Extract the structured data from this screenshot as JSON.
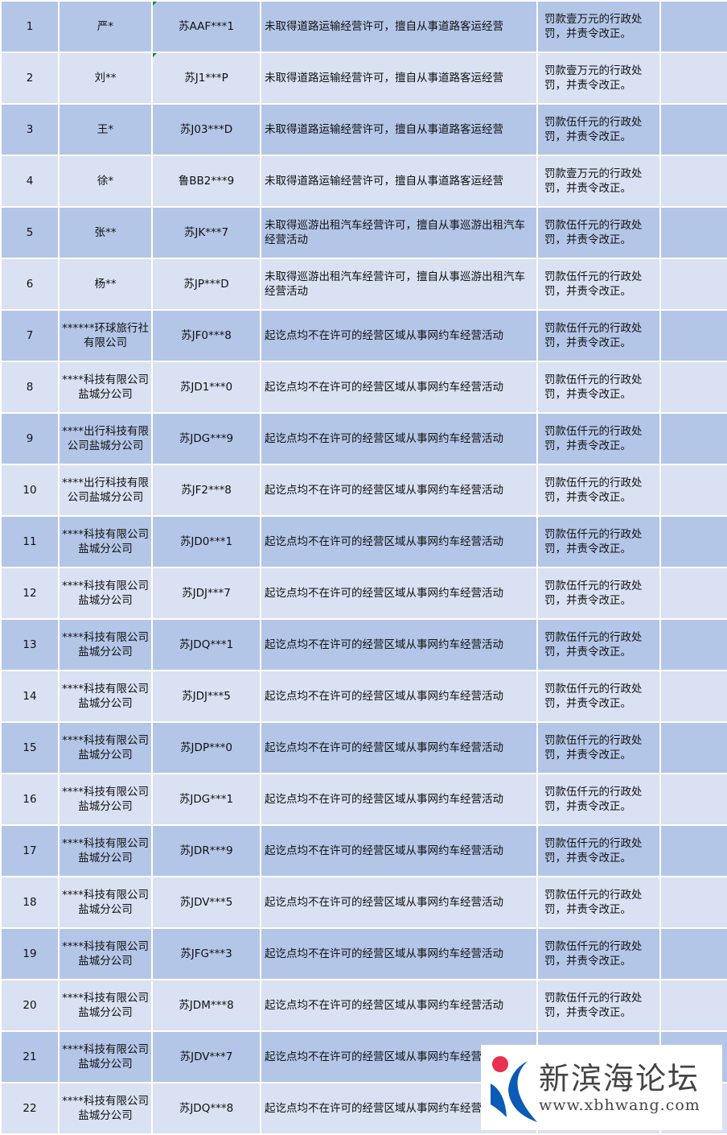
{
  "colors": {
    "row_odd": "#b4c6e7",
    "row_even": "#d9e1f2",
    "watermark_dot": "#e8304f",
    "watermark_arc": "#0a5bb5"
  },
  "rows": [
    {
      "no": "1",
      "name": "严*",
      "plate": "苏AAF***1",
      "violation": "未取得道路运输经营许可，擅自从事道路客运经营",
      "penalty": "罚款壹万元的行政处罚，并责令改正。"
    },
    {
      "no": "2",
      "name": "刘**",
      "plate": "苏J1***P",
      "violation": "未取得道路运输经营许可，擅自从事道路客运经营",
      "penalty": "罚款壹万元的行政处罚，并责令改正。"
    },
    {
      "no": "3",
      "name": "王*",
      "plate": "苏J03***D",
      "violation": "未取得道路运输经营许可，擅自从事道路客运经营",
      "penalty": "罚款伍仟元的行政处罚，并责令改正。"
    },
    {
      "no": "4",
      "name": "徐*",
      "plate": "鲁BB2***9",
      "violation": "未取得道路运输经营许可，擅自从事道路客运经营",
      "penalty": "罚款壹万元的行政处罚，并责令改正。"
    },
    {
      "no": "5",
      "name": "张**",
      "plate": "苏JK***7",
      "violation": "未取得巡游出租汽车经营许可，擅自从事巡游出租汽车经营活动",
      "penalty": "罚款伍仟元的行政处罚，并责令改正。"
    },
    {
      "no": "6",
      "name": "杨**",
      "plate": "苏JP***D",
      "violation": "未取得巡游出租汽车经营许可，擅自从事巡游出租汽车经营活动",
      "penalty": "罚款伍仟元的行政处罚，并责令改正。"
    },
    {
      "no": "7",
      "name": "******环球旅行社有限公司",
      "plate": "苏JF0***8",
      "violation": "起讫点均不在许可的经营区域从事网约车经营活动",
      "penalty": "罚款伍仟元的行政处罚，并责令改正。"
    },
    {
      "no": "8",
      "name": "****科技有限公司盐城分公司",
      "plate": "苏JD1***0",
      "violation": "起讫点均不在许可的经营区域从事网约车经营活动",
      "penalty": "罚款伍仟元的行政处罚，并责令改正。"
    },
    {
      "no": "9",
      "name": "****出行科技有限公司盐城分公司",
      "plate": "苏JDG***9",
      "violation": "起讫点均不在许可的经营区域从事网约车经营活动",
      "penalty": "罚款伍仟元的行政处罚，并责令改正。"
    },
    {
      "no": "10",
      "name": "****出行科技有限公司盐城分公司",
      "plate": "苏JF2***8",
      "violation": "起讫点均不在许可的经营区域从事网约车经营活动",
      "penalty": "罚款伍仟元的行政处罚，并责令改正。"
    },
    {
      "no": "11",
      "name": "****科技有限公司盐城分公司",
      "plate": "苏JD0***1",
      "violation": "起讫点均不在许可的经营区域从事网约车经营活动",
      "penalty": "罚款伍仟元的行政处罚，并责令改正。"
    },
    {
      "no": "12",
      "name": "****科技有限公司盐城分公司",
      "plate": "苏JDJ***7",
      "violation": "起讫点均不在许可的经营区域从事网约车经营活动",
      "penalty": "罚款伍仟元的行政处罚，并责令改正。"
    },
    {
      "no": "13",
      "name": "****科技有限公司盐城分公司",
      "plate": "苏JDQ***1",
      "violation": "起讫点均不在许可的经营区域从事网约车经营活动",
      "penalty": "罚款伍仟元的行政处罚，并责令改正。"
    },
    {
      "no": "14",
      "name": "****科技有限公司盐城分公司",
      "plate": "苏JDJ***5",
      "violation": "起讫点均不在许可的经营区域从事网约车经营活动",
      "penalty": "罚款伍仟元的行政处罚，并责令改正。"
    },
    {
      "no": "15",
      "name": "****科技有限公司盐城分公司",
      "plate": "苏JDP***0",
      "violation": "起讫点均不在许可的经营区域从事网约车经营活动",
      "penalty": "罚款伍仟元的行政处罚，并责令改正。"
    },
    {
      "no": "16",
      "name": "****科技有限公司盐城分公司",
      "plate": "苏JDG***1",
      "violation": "起讫点均不在许可的经营区域从事网约车经营活动",
      "penalty": "罚款伍仟元的行政处罚，并责令改正。"
    },
    {
      "no": "17",
      "name": "****科技有限公司盐城分公司",
      "plate": "苏JDR***9",
      "violation": "起讫点均不在许可的经营区域从事网约车经营活动",
      "penalty": "罚款伍仟元的行政处罚，并责令改正。"
    },
    {
      "no": "18",
      "name": "****科技有限公司盐城分公司",
      "plate": "苏JDV***5",
      "violation": "起讫点均不在许可的经营区域从事网约车经营活动",
      "penalty": "罚款伍仟元的行政处罚，并责令改正。"
    },
    {
      "no": "19",
      "name": "****科技有限公司盐城分公司",
      "plate": "苏JFG***3",
      "violation": "起讫点均不在许可的经营区域从事网约车经营活动",
      "penalty": "罚款伍仟元的行政处罚，并责令改正。"
    },
    {
      "no": "20",
      "name": "****科技有限公司盐城分公司",
      "plate": "苏JDM***8",
      "violation": "起讫点均不在许可的经营区域从事网约车经营活动",
      "penalty": "罚款伍仟元的行政处罚，并责令改正。"
    },
    {
      "no": "21",
      "name": "****科技有限公司盐城分公司",
      "plate": "苏JDV***7",
      "violation": "起讫点均不在许可的经营区域从事网约车经营活动",
      "penalty": ""
    },
    {
      "no": "22",
      "name": "****科技有限公司盐城分公司",
      "plate": "苏JDQ***8",
      "violation": "起讫点均不在许可的经营区域从事网约车经营活动",
      "penalty": ""
    }
  ],
  "watermark": {
    "name": "新滨海论坛",
    "url": "www.xbhwang.com"
  }
}
